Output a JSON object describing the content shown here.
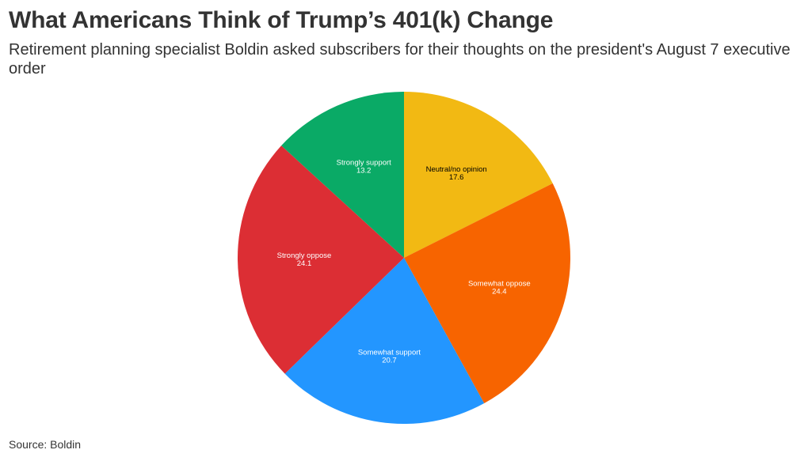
{
  "header": {
    "title": "What Americans Think of Trump’s 401(k) Change",
    "subtitle": "Retirement planning specialist Boldin asked subscribers for their thoughts on the president's August 7 executive order"
  },
  "footer": {
    "source": "Source: Boldin"
  },
  "chart_data": {
    "type": "pie",
    "title": "What Americans Think of Trump’s 401(k) Change",
    "start_angle_deg": 0,
    "direction": "clockwise",
    "legend": "none",
    "slices": [
      {
        "label": "Neutral/no opinion",
        "value": 17.6,
        "color": "#f2b913",
        "text_color": "#000000"
      },
      {
        "label": "Somewhat oppose",
        "value": 24.4,
        "color": "#f76400",
        "text_color": "#ffffff"
      },
      {
        "label": "Somewhat support",
        "value": 20.7,
        "color": "#2396ff",
        "text_color": "#ffffff"
      },
      {
        "label": "Strongly oppose",
        "value": 24.1,
        "color": "#dc2e34",
        "text_color": "#ffffff"
      },
      {
        "label": "Strongly support",
        "value": 13.2,
        "color": "#0aaa66",
        "text_color": "#ffffff"
      }
    ]
  }
}
